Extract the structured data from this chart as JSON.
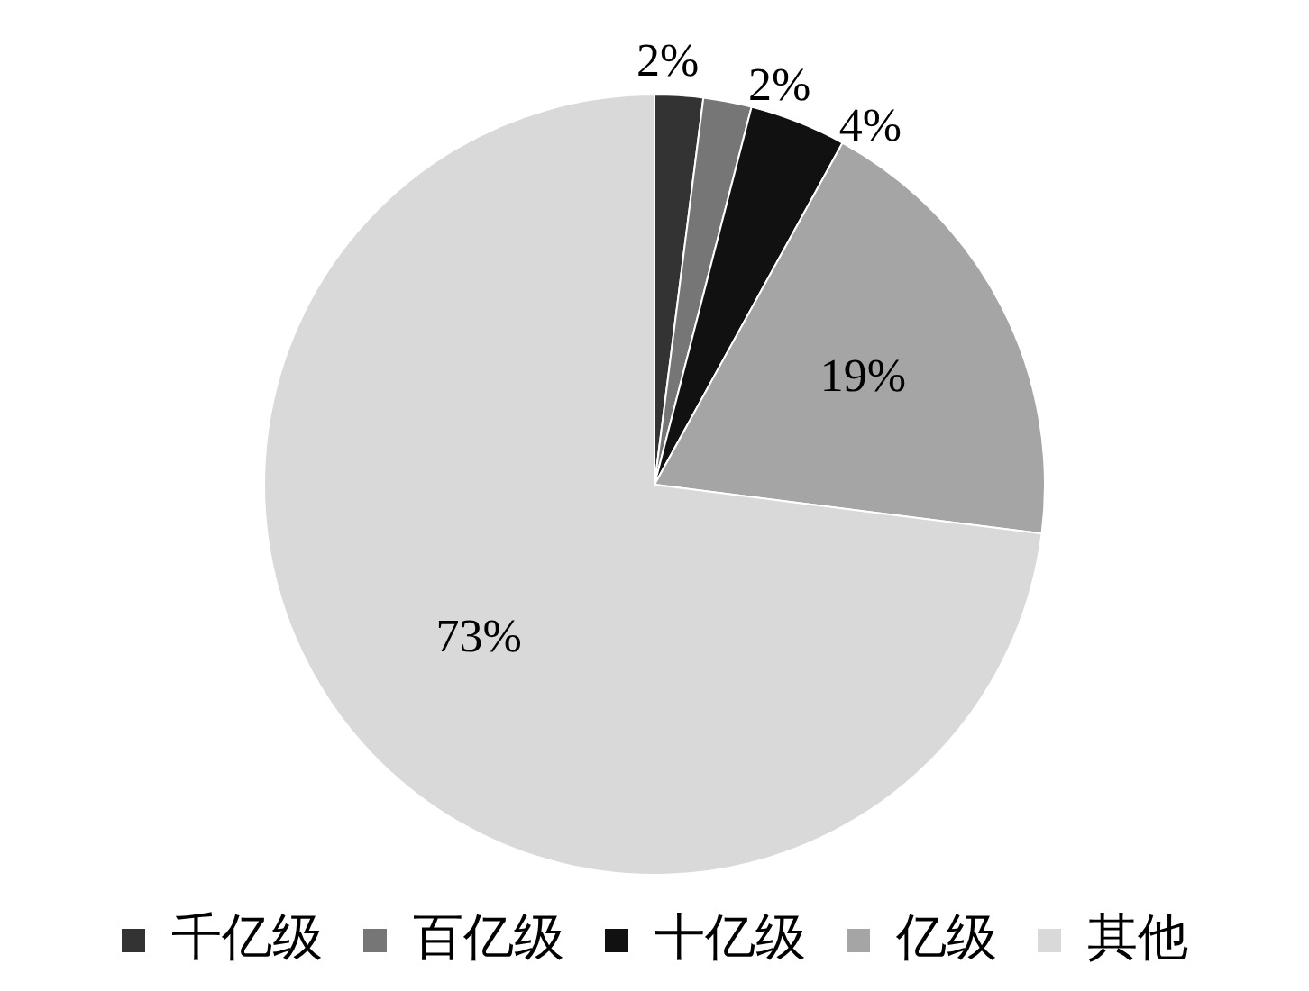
{
  "chart_data": {
    "type": "pie",
    "categories": [
      "千亿级",
      "百亿级",
      "十亿级",
      "亿级",
      "其他"
    ],
    "values": [
      2,
      2,
      4,
      19,
      73
    ],
    "colors": [
      "#333333",
      "#767676",
      "#111111",
      "#a5a5a5",
      "#d9d9d9"
    ],
    "value_labels": [
      "2%",
      "2%",
      "4%",
      "19%",
      "73%"
    ],
    "legend": "bottom"
  }
}
